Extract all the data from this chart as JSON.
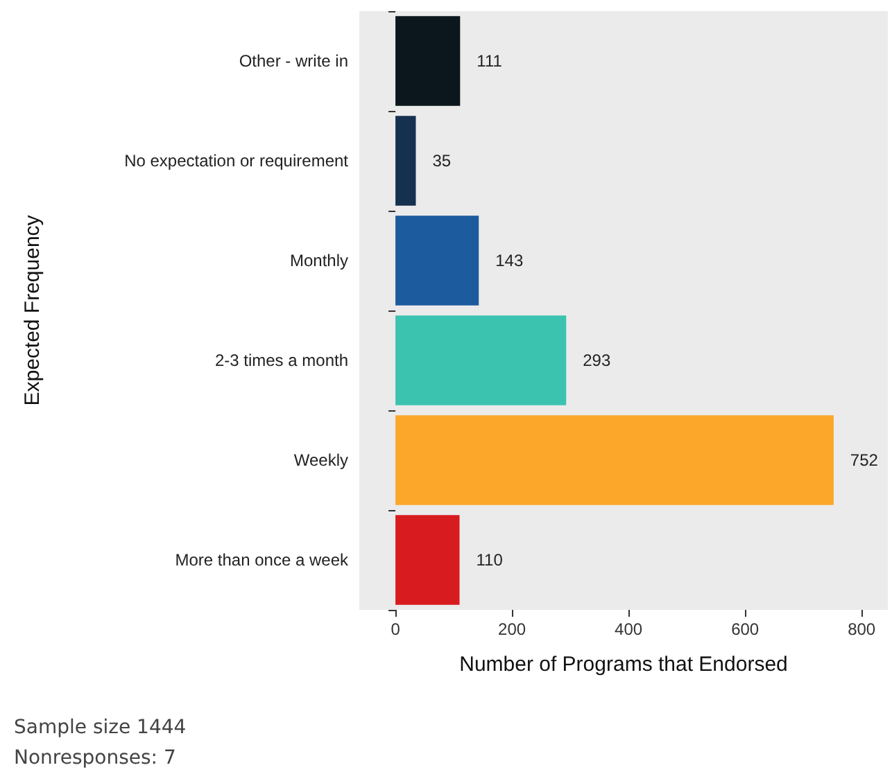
{
  "chart_data": {
    "type": "bar",
    "orientation": "horizontal",
    "xlabel": "Number of Programs that Endorsed",
    "ylabel": "Expected Frequency",
    "categories": [
      "Other - write in",
      "No expectation or requirement",
      "Monthly",
      "2-3 times a month",
      "Weekly",
      "More than once a week"
    ],
    "values": [
      111,
      35,
      143,
      293,
      752,
      110
    ],
    "colors": [
      "#0b171d",
      "#16304f",
      "#1c5b9e",
      "#3cc3b0",
      "#fca72a",
      "#d81b1e"
    ],
    "xlim": [
      -62,
      845
    ],
    "xticks": [
      0,
      200,
      400,
      600,
      800
    ],
    "grid": false,
    "data_labels": true,
    "annotations": [
      "Sample size 1444",
      "Nonresponses: 7"
    ]
  }
}
